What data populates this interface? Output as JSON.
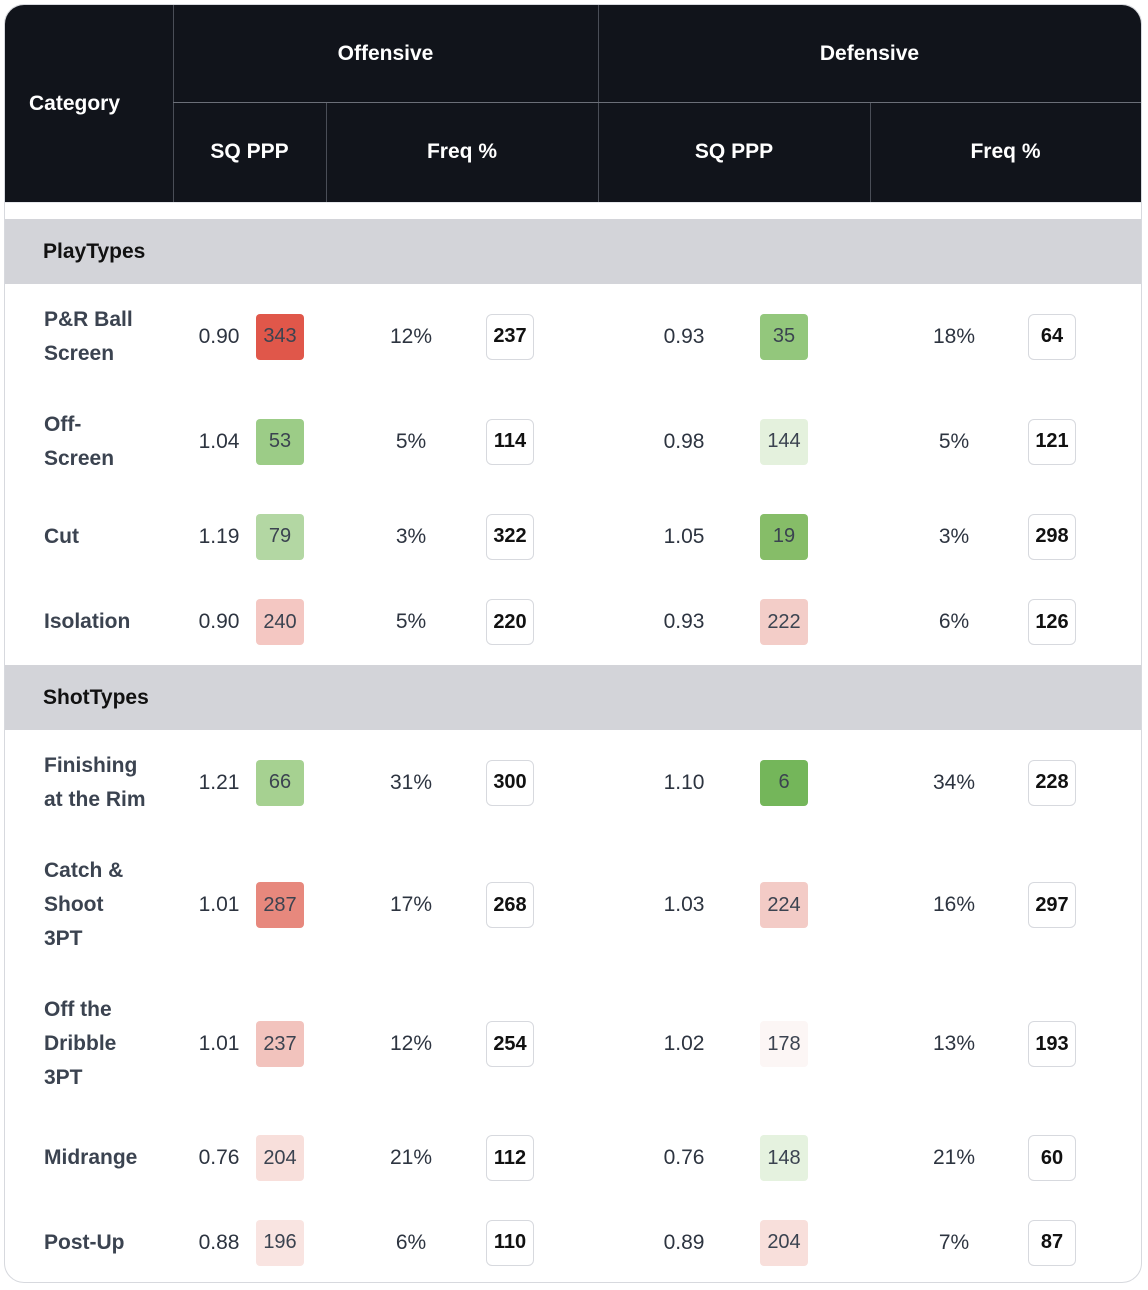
{
  "header": {
    "category": "Category",
    "offensive": "Offensive",
    "defensive": "Defensive",
    "off_sq": "SQ PPP",
    "off_freq": "Freq %",
    "def_sq": "SQ PPP",
    "def_freq": "Freq %"
  },
  "sections": [
    {
      "title": "PlayTypes",
      "rows": [
        {
          "category": "P&R Ball\nScreen",
          "off_ppp": "0.90",
          "off_ppp_rank": "343",
          "off_freq": "12%",
          "off_freq_rank": "237",
          "def_ppp": "0.93",
          "def_ppp_rank": "35",
          "def_freq": "18%",
          "def_freq_rank": "64"
        },
        {
          "category": "Off-\nScreen",
          "off_ppp": "1.04",
          "off_ppp_rank": "53",
          "off_freq": "5%",
          "off_freq_rank": "114",
          "def_ppp": "0.98",
          "def_ppp_rank": "144",
          "def_freq": "5%",
          "def_freq_rank": "121"
        },
        {
          "category": "Cut",
          "off_ppp": "1.19",
          "off_ppp_rank": "79",
          "off_freq": "3%",
          "off_freq_rank": "322",
          "def_ppp": "1.05",
          "def_ppp_rank": "19",
          "def_freq": "3%",
          "def_freq_rank": "298"
        },
        {
          "category": "Isolation",
          "off_ppp": "0.90",
          "off_ppp_rank": "240",
          "off_freq": "5%",
          "off_freq_rank": "220",
          "def_ppp": "0.93",
          "def_ppp_rank": "222",
          "def_freq": "6%",
          "def_freq_rank": "126"
        }
      ]
    },
    {
      "title": "ShotTypes",
      "rows": [
        {
          "category": "Finishing\nat the Rim",
          "off_ppp": "1.21",
          "off_ppp_rank": "66",
          "off_freq": "31%",
          "off_freq_rank": "300",
          "def_ppp": "1.10",
          "def_ppp_rank": "6",
          "def_freq": "34%",
          "def_freq_rank": "228"
        },
        {
          "category": "Catch &\nShoot\n3PT",
          "off_ppp": "1.01",
          "off_ppp_rank": "287",
          "off_freq": "17%",
          "off_freq_rank": "268",
          "def_ppp": "1.03",
          "def_ppp_rank": "224",
          "def_freq": "16%",
          "def_freq_rank": "297"
        },
        {
          "category": "Off the\nDribble\n3PT",
          "off_ppp": "1.01",
          "off_ppp_rank": "237",
          "off_freq": "12%",
          "off_freq_rank": "254",
          "def_ppp": "1.02",
          "def_ppp_rank": "178",
          "def_freq": "13%",
          "def_freq_rank": "193"
        },
        {
          "category": "Midrange",
          "off_ppp": "0.76",
          "off_ppp_rank": "204",
          "off_freq": "21%",
          "off_freq_rank": "112",
          "def_ppp": "0.76",
          "def_ppp_rank": "148",
          "def_freq": "21%",
          "def_freq_rank": "60"
        },
        {
          "category": "Post-Up",
          "off_ppp": "0.88",
          "off_ppp_rank": "196",
          "off_freq": "6%",
          "off_freq_rank": "110",
          "def_ppp": "0.89",
          "def_ppp_rank": "204",
          "def_freq": "7%",
          "def_freq_rank": "87"
        }
      ]
    }
  ],
  "rank_colors": {
    "343": "#e0574a",
    "35": "#93c77c",
    "53": "#9ccc87",
    "144": "#e4f1dd",
    "79": "#b3d7a3",
    "19": "#86bd68",
    "240": "#f4c7c2",
    "222": "#f3cdc8",
    "66": "#a6d191",
    "6": "#74b65a",
    "287": "#e7887d",
    "224": "#f3cbc6",
    "237": "#f2c3bd",
    "178": "#fcf6f5",
    "204": "#f8dfdb",
    "148": "#e5f2df",
    "196": "#f9e4e1"
  }
}
